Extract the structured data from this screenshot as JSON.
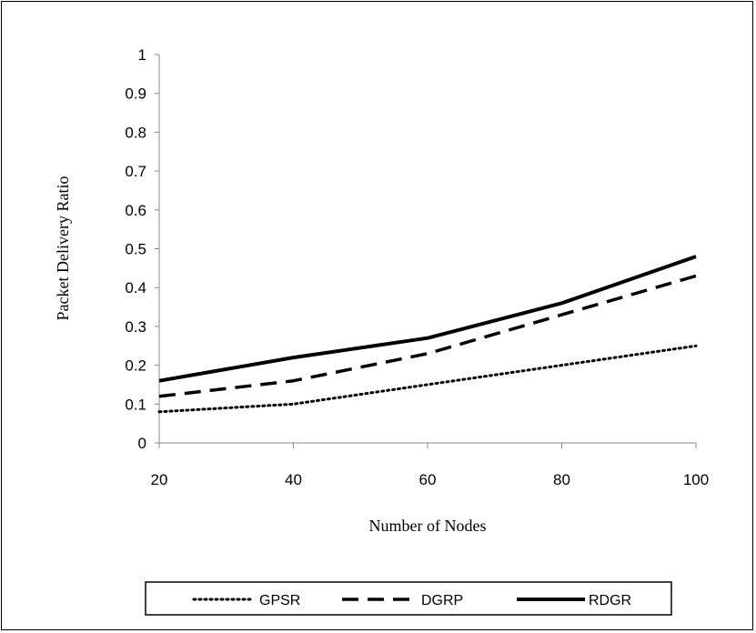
{
  "chart_data": {
    "type": "line",
    "title": "",
    "xlabel": "Number of  Nodes",
    "ylabel": "Packet Delivery Ratio",
    "x": [
      20,
      40,
      60,
      80,
      100
    ],
    "xlim": [
      20,
      100
    ],
    "ylim": [
      0,
      1
    ],
    "xticks": [
      "20",
      "40",
      "60",
      "80",
      "100"
    ],
    "yticks": [
      "0",
      "0.1",
      "0.2",
      "0.3",
      "0.4",
      "0.5",
      "0.6",
      "0.7",
      "0.8",
      "0.9",
      "1"
    ],
    "grid": false,
    "legend_position": "bottom",
    "series": [
      {
        "name": "GPSR",
        "values": [
          0.08,
          0.1,
          0.15,
          0.2,
          0.25
        ],
        "style": "dotted",
        "color": "#000000"
      },
      {
        "name": "DGRP",
        "values": [
          0.12,
          0.16,
          0.23,
          0.33,
          0.43
        ],
        "style": "dashed",
        "color": "#000000"
      },
      {
        "name": "RDGR",
        "values": [
          0.16,
          0.22,
          0.27,
          0.36,
          0.48
        ],
        "style": "solid",
        "color": "#000000"
      }
    ]
  }
}
